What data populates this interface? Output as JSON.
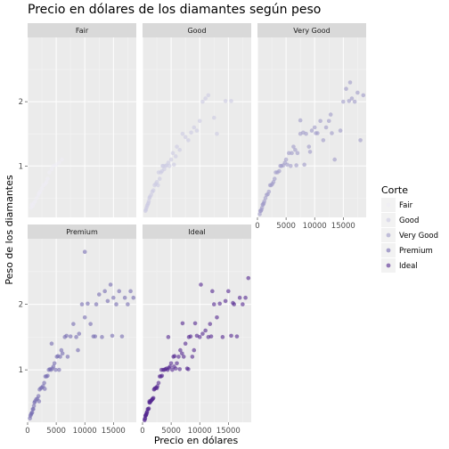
{
  "chart_data": {
    "type": "scatter",
    "title": "Precio en dólares de los diamantes según peso",
    "xlabel": "Precio en dólares",
    "ylabel": "Peso de los diamantes",
    "xlim": [
      0,
      19000
    ],
    "ylim": [
      0.2,
      3.0
    ],
    "x_ticks": [
      0,
      5000,
      10000,
      15000
    ],
    "x_tick_labels": [
      "0",
      "5000",
      "10000",
      "15000"
    ],
    "y_ticks": [
      1,
      2
    ],
    "y_tick_labels": [
      "1",
      "2"
    ],
    "grid": true,
    "legend": {
      "title": "Corte",
      "position": "right",
      "entries": [
        "Fair",
        "Good",
        "Very Good",
        "Premium",
        "Ideal"
      ]
    },
    "colors": {
      "Fair": "#efedf5",
      "Good": "#cbc9e2",
      "Very Good": "#9e9ac8",
      "Premium": "#756bb1",
      "Ideal": "#54278f"
    },
    "panels": [
      {
        "name": "Fair",
        "points": [
          [
            600,
            0.35
          ],
          [
            900,
            0.38
          ],
          [
            1100,
            0.42
          ],
          [
            1300,
            0.45
          ],
          [
            1600,
            0.5
          ],
          [
            1900,
            0.55
          ],
          [
            2200,
            0.6
          ],
          [
            2500,
            0.65
          ],
          [
            2800,
            0.7
          ],
          [
            3100,
            0.72
          ],
          [
            3500,
            0.8
          ],
          [
            3800,
            0.9
          ],
          [
            4200,
            0.95
          ],
          [
            4500,
            1.0
          ],
          [
            5000,
            1.02
          ],
          [
            5500,
            1.05
          ],
          [
            6000,
            1.1
          ],
          [
            700,
            0.4
          ],
          [
            2000,
            0.58
          ],
          [
            3300,
            0.75
          ]
        ]
      },
      {
        "name": "Good",
        "points": [
          [
            500,
            0.3
          ],
          [
            600,
            0.32
          ],
          [
            700,
            0.35
          ],
          [
            800,
            0.38
          ],
          [
            900,
            0.4
          ],
          [
            1000,
            0.42
          ],
          [
            1100,
            0.45
          ],
          [
            1200,
            0.5
          ],
          [
            1300,
            0.52
          ],
          [
            1500,
            0.55
          ],
          [
            1700,
            0.6
          ],
          [
            1900,
            0.62
          ],
          [
            2100,
            0.7
          ],
          [
            2300,
            0.72
          ],
          [
            2500,
            0.75
          ],
          [
            2700,
            0.7
          ],
          [
            3000,
            0.8
          ],
          [
            3200,
            0.9
          ],
          [
            3400,
            0.92
          ],
          [
            3600,
            1.0
          ],
          [
            3800,
            0.95
          ],
          [
            4000,
            1.0
          ],
          [
            4200,
            1.01
          ],
          [
            4500,
            1.05
          ],
          [
            4700,
            1.0
          ],
          [
            5000,
            1.1
          ],
          [
            5300,
            1.2
          ],
          [
            5500,
            1.02
          ],
          [
            5800,
            1.15
          ],
          [
            6000,
            1.3
          ],
          [
            6500,
            1.25
          ],
          [
            7000,
            1.5
          ],
          [
            7500,
            1.45
          ],
          [
            8000,
            1.4
          ],
          [
            8500,
            1.52
          ],
          [
            9000,
            1.6
          ],
          [
            9500,
            1.55
          ],
          [
            10000,
            1.7
          ],
          [
            10500,
            2.0
          ],
          [
            11000,
            2.05
          ],
          [
            11500,
            2.1
          ],
          [
            12500,
            1.75
          ],
          [
            13000,
            1.5
          ],
          [
            14500,
            2.01
          ],
          [
            15500,
            2.01
          ],
          [
            2800,
            0.9
          ],
          [
            3500,
            1.0
          ]
        ]
      },
      {
        "name": "Very Good",
        "points": [
          [
            400,
            0.25
          ],
          [
            500,
            0.3
          ],
          [
            600,
            0.3
          ],
          [
            700,
            0.32
          ],
          [
            800,
            0.35
          ],
          [
            900,
            0.4
          ],
          [
            1000,
            0.4
          ],
          [
            1100,
            0.42
          ],
          [
            1200,
            0.45
          ],
          [
            1400,
            0.5
          ],
          [
            1600,
            0.55
          ],
          [
            1800,
            0.56
          ],
          [
            2000,
            0.6
          ],
          [
            2200,
            0.7
          ],
          [
            2400,
            0.7
          ],
          [
            2600,
            0.72
          ],
          [
            2800,
            0.75
          ],
          [
            3000,
            0.8
          ],
          [
            3200,
            0.9
          ],
          [
            3500,
            0.9
          ],
          [
            3800,
            0.92
          ],
          [
            4000,
            1.0
          ],
          [
            4200,
            1.0
          ],
          [
            4500,
            1.01
          ],
          [
            4800,
            1.05
          ],
          [
            5000,
            1.1
          ],
          [
            5200,
            1.02
          ],
          [
            5500,
            1.2
          ],
          [
            5800,
            1.0
          ],
          [
            6000,
            1.2
          ],
          [
            6300,
            1.3
          ],
          [
            6600,
            1.25
          ],
          [
            7000,
            1.2
          ],
          [
            7500,
            1.5
          ],
          [
            8000,
            1.52
          ],
          [
            8500,
            1.5
          ],
          [
            9000,
            1.3
          ],
          [
            9500,
            1.55
          ],
          [
            10000,
            1.6
          ],
          [
            10500,
            1.51
          ],
          [
            11000,
            1.7
          ],
          [
            11500,
            1.4
          ],
          [
            12000,
            1.6
          ],
          [
            12500,
            1.7
          ],
          [
            13000,
            1.51
          ],
          [
            13500,
            1.1
          ],
          [
            14500,
            1.55
          ],
          [
            15000,
            2.0
          ],
          [
            15500,
            2.2
          ],
          [
            16000,
            2.01
          ],
          [
            16500,
            2.05
          ],
          [
            17000,
            2.0
          ],
          [
            17500,
            2.14
          ],
          [
            18000,
            1.4
          ],
          [
            18500,
            2.1
          ],
          [
            16200,
            2.3
          ],
          [
            7500,
            1.71
          ],
          [
            8200,
            1.02
          ],
          [
            6800,
            1.01
          ],
          [
            9200,
            1.22
          ],
          [
            10200,
            1.51
          ],
          [
            12800,
            1.8
          ]
        ]
      },
      {
        "name": "Premium",
        "points": [
          [
            400,
            0.26
          ],
          [
            500,
            0.3
          ],
          [
            600,
            0.32
          ],
          [
            700,
            0.34
          ],
          [
            800,
            0.35
          ],
          [
            900,
            0.4
          ],
          [
            1000,
            0.4
          ],
          [
            1100,
            0.45
          ],
          [
            1200,
            0.5
          ],
          [
            1300,
            0.52
          ],
          [
            1500,
            0.55
          ],
          [
            1700,
            0.56
          ],
          [
            1900,
            0.6
          ],
          [
            2100,
            0.7
          ],
          [
            2300,
            0.72
          ],
          [
            2500,
            0.73
          ],
          [
            2700,
            0.75
          ],
          [
            2900,
            0.8
          ],
          [
            3100,
            0.9
          ],
          [
            3300,
            0.9
          ],
          [
            3500,
            0.91
          ],
          [
            3700,
            1.0
          ],
          [
            3900,
            1.01
          ],
          [
            4100,
            1.0
          ],
          [
            4300,
            1.02
          ],
          [
            4500,
            1.05
          ],
          [
            4700,
            1.1
          ],
          [
            4900,
            1.0
          ],
          [
            5100,
            1.2
          ],
          [
            5300,
            1.21
          ],
          [
            5500,
            1.0
          ],
          [
            5700,
            1.2
          ],
          [
            5900,
            1.3
          ],
          [
            6100,
            1.25
          ],
          [
            6500,
            1.5
          ],
          [
            7000,
            1.2
          ],
          [
            7500,
            1.51
          ],
          [
            8000,
            1.7
          ],
          [
            8500,
            1.5
          ],
          [
            9000,
            1.55
          ],
          [
            9500,
            2.0
          ],
          [
            10000,
            1.8
          ],
          [
            10500,
            2.01
          ],
          [
            11000,
            1.7
          ],
          [
            11500,
            1.51
          ],
          [
            12000,
            2.0
          ],
          [
            12500,
            2.15
          ],
          [
            13000,
            1.5
          ],
          [
            13500,
            2.2
          ],
          [
            14000,
            2.05
          ],
          [
            14500,
            2.3
          ],
          [
            15000,
            2.1
          ],
          [
            15500,
            2.0
          ],
          [
            16000,
            2.2
          ],
          [
            16500,
            1.51
          ],
          [
            17000,
            2.1
          ],
          [
            17500,
            2.0
          ],
          [
            18000,
            2.2
          ],
          [
            18500,
            2.1
          ],
          [
            10000,
            2.8
          ],
          [
            6800,
            1.52
          ],
          [
            8800,
            1.3
          ],
          [
            11800,
            1.51
          ],
          [
            14800,
            1.52
          ],
          [
            4200,
            1.4
          ],
          [
            3000,
            0.71
          ],
          [
            2000,
            0.52
          ]
        ]
      },
      {
        "name": "Ideal",
        "points": [
          [
            350,
            0.23
          ],
          [
            400,
            0.25
          ],
          [
            450,
            0.26
          ],
          [
            500,
            0.3
          ],
          [
            550,
            0.3
          ],
          [
            600,
            0.31
          ],
          [
            650,
            0.32
          ],
          [
            700,
            0.33
          ],
          [
            750,
            0.35
          ],
          [
            800,
            0.36
          ],
          [
            900,
            0.4
          ],
          [
            1000,
            0.4
          ],
          [
            1100,
            0.41
          ],
          [
            1200,
            0.5
          ],
          [
            1300,
            0.5
          ],
          [
            1400,
            0.52
          ],
          [
            1500,
            0.53
          ],
          [
            1600,
            0.54
          ],
          [
            1700,
            0.55
          ],
          [
            1800,
            0.56
          ],
          [
            1900,
            0.57
          ],
          [
            2000,
            0.7
          ],
          [
            2100,
            0.71
          ],
          [
            2200,
            0.72
          ],
          [
            2400,
            0.73
          ],
          [
            2600,
            0.75
          ],
          [
            2800,
            0.8
          ],
          [
            3000,
            0.9
          ],
          [
            3200,
            0.9
          ],
          [
            3400,
            0.91
          ],
          [
            3600,
            1.0
          ],
          [
            3800,
            1.0
          ],
          [
            4000,
            1.01
          ],
          [
            4200,
            1.02
          ],
          [
            4400,
            1.0
          ],
          [
            4600,
            1.03
          ],
          [
            4800,
            1.05
          ],
          [
            5000,
            1.1
          ],
          [
            5200,
            1.0
          ],
          [
            5400,
            1.2
          ],
          [
            5600,
            1.21
          ],
          [
            5800,
            1.02
          ],
          [
            6000,
            1.1
          ],
          [
            6300,
            1.2
          ],
          [
            6600,
            1.3
          ],
          [
            6900,
            1.25
          ],
          [
            7200,
            1.2
          ],
          [
            7500,
            1.4
          ],
          [
            7800,
            1.02
          ],
          [
            8100,
            1.5
          ],
          [
            8400,
            1.51
          ],
          [
            8700,
            1.2
          ],
          [
            9000,
            1.3
          ],
          [
            9500,
            1.52
          ],
          [
            10000,
            1.5
          ],
          [
            10500,
            1.55
          ],
          [
            11000,
            1.6
          ],
          [
            11500,
            1.5
          ],
          [
            12000,
            1.51
          ],
          [
            12500,
            2.0
          ],
          [
            13000,
            1.8
          ],
          [
            13500,
            2.01
          ],
          [
            14000,
            1.5
          ],
          [
            14500,
            2.05
          ],
          [
            15000,
            2.2
          ],
          [
            15500,
            1.52
          ],
          [
            16000,
            2.0
          ],
          [
            16500,
            1.51
          ],
          [
            17000,
            2.1
          ],
          [
            17500,
            2.0
          ],
          [
            18000,
            2.1
          ],
          [
            18500,
            2.4
          ],
          [
            10200,
            2.3
          ],
          [
            11800,
            1.7
          ],
          [
            8000,
            1.01
          ],
          [
            6500,
            1.01
          ],
          [
            9200,
            1.71
          ],
          [
            12200,
            2.2
          ],
          [
            15800,
            2.02
          ],
          [
            7000,
            1.71
          ],
          [
            4500,
            1.5
          ],
          [
            5500,
            1.05
          ],
          [
            3300,
            1.0
          ],
          [
            2500,
            0.72
          ],
          [
            1200,
            0.52
          ]
        ]
      }
    ]
  }
}
